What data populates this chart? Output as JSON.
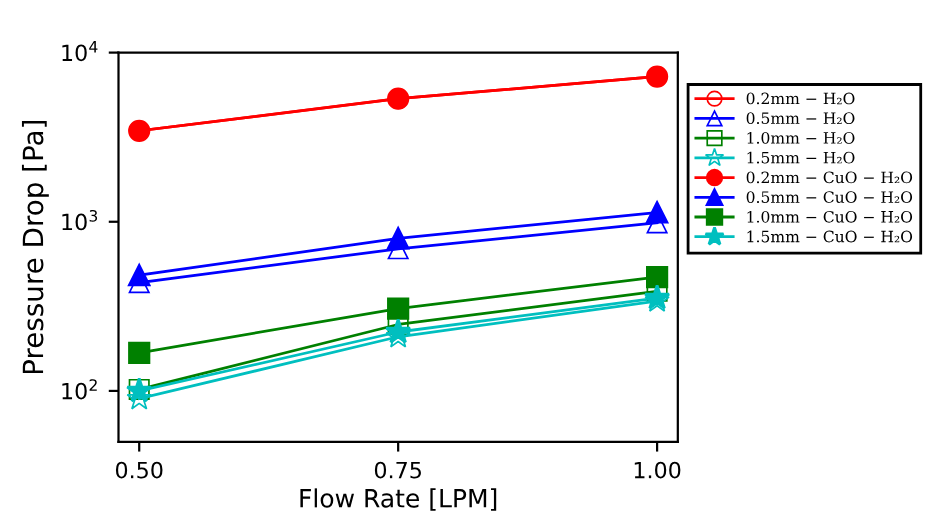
{
  "chart_data": {
    "type": "line",
    "xlabel": "Flow Rate [LPM]",
    "ylabel": "Pressure Drop [Pa]",
    "x": [
      0.5,
      0.75,
      1.0
    ],
    "xlim": [
      0.48,
      1.02
    ],
    "xticks": [
      {
        "value": 0.5,
        "label": "0.50"
      },
      {
        "value": 0.75,
        "label": "0.75"
      },
      {
        "value": 1.0,
        "label": "1.00"
      }
    ],
    "log": "y",
    "ylim": [
      50,
      10000
    ],
    "yticks": [
      {
        "value": 100,
        "label": "10$^{2}$"
      },
      {
        "value": 1000,
        "label": "10$^{3}$"
      },
      {
        "value": 10000,
        "label": "10$^{4}$"
      }
    ],
    "grid": false,
    "legend": "top right",
    "series": [
      {
        "name": "0.2mm − H₂O",
        "color": "#ff0000",
        "marker": "circle",
        "values": [
          3450,
          5340,
          7220
        ]
      },
      {
        "name": "0.5mm − H₂O",
        "color": "#0000ff",
        "marker": "triangle",
        "values": [
          437,
          692,
          985
        ]
      },
      {
        "name": "1.0mm − H₂O",
        "color": "#008000",
        "marker": "square",
        "values": [
          102,
          247,
          388
        ]
      },
      {
        "name": "1.5mm − H₂O",
        "color": "#00bfbf",
        "marker": "star",
        "values": [
          90,
          209,
          340
        ]
      },
      {
        "name": "0.2mm − CuO − H₂O",
        "color": "#ff0000",
        "marker": "circle",
        "values": [
          3450,
          5340,
          7220
        ]
      },
      {
        "name": "0.5mm − CuO − H₂O",
        "color": "#0000ff",
        "marker": "triangle",
        "values": [
          483,
          798,
          1135
        ]
      },
      {
        "name": "1.0mm − CuO − H₂O",
        "color": "#008000",
        "marker": "square",
        "values": [
          168,
          307,
          471
        ]
      },
      {
        "name": "1.5mm − CuO − H₂O",
        "color": "#00bfbf",
        "marker": "star",
        "values": [
          100,
          223,
          354
        ]
      }
    ]
  }
}
